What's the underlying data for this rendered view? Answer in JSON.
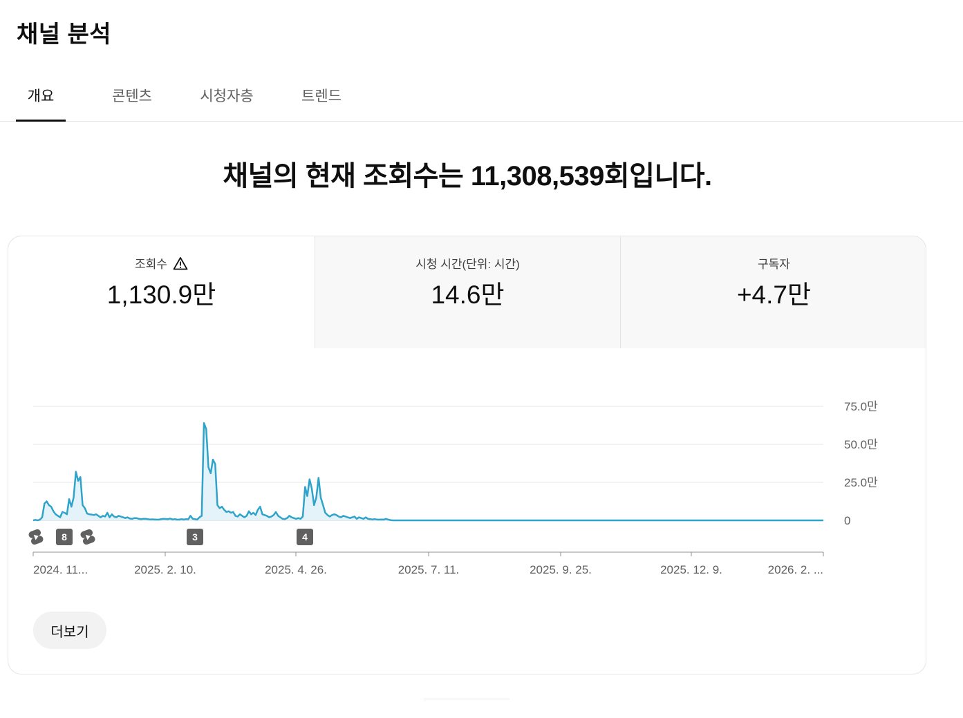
{
  "page": {
    "title": "채널 분석"
  },
  "tabs": [
    {
      "label": "개요",
      "active": true
    },
    {
      "label": "콘텐츠",
      "active": false
    },
    {
      "label": "시청자층",
      "active": false
    },
    {
      "label": "트렌드",
      "active": false
    }
  ],
  "headline": "채널의 현재 조회수는 11,308,539회입니다.",
  "metrics": [
    {
      "label": "조회수",
      "value": "1,130.9만",
      "warning_icon": "warning-icon"
    },
    {
      "label": "시청 시간(단위: 시간)",
      "value": "14.6만"
    },
    {
      "label": "구독자",
      "value": "+4.7만"
    }
  ],
  "more_button": "더보기",
  "colors": {
    "line": "#2fa3c9",
    "fill": "#e3f3f9",
    "grid": "#e5e5e5",
    "marker": "#606060"
  },
  "chart_data": {
    "type": "area",
    "x_tick_labels": [
      "2024. 11...",
      "2025. 2. 10.",
      "2025. 4. 26.",
      "2025. 7. 11.",
      "2025. 9. 25.",
      "2025. 12. 9.",
      "2026. 2. ..."
    ],
    "y_tick_labels": [
      "75.0만",
      "50.0만",
      "25.0만",
      "0"
    ],
    "ylim": [
      0,
      750000
    ],
    "grid": true,
    "series": [
      {
        "values": [
          0,
          3000,
          0,
          5000,
          20000,
          110000,
          125000,
          100000,
          90000,
          60000,
          40000,
          30000,
          20000,
          55000,
          50000,
          40000,
          140000,
          90000,
          150000,
          320000,
          260000,
          285000,
          100000,
          80000,
          45000,
          40000,
          38000,
          35000,
          40000,
          30000,
          20000,
          30000,
          25000,
          50000,
          20000,
          40000,
          25000,
          20000,
          30000,
          25000,
          20000,
          15000,
          20000,
          12000,
          10000,
          15000,
          15000,
          10000,
          8000,
          10000,
          10000,
          8000,
          6000,
          7000,
          6000,
          5000,
          5000,
          8000,
          10000,
          9000,
          8000,
          12000,
          6000,
          8000,
          5000,
          5000,
          8000,
          5000,
          8000,
          7000,
          30000,
          10000,
          8000,
          5000,
          20000,
          30000,
          640000,
          600000,
          350000,
          310000,
          400000,
          370000,
          100000,
          80000,
          90000,
          70000,
          55000,
          60000,
          50000,
          55000,
          30000,
          25000,
          40000,
          30000,
          20000,
          30000,
          60000,
          40000,
          50000,
          35000,
          70000,
          90000,
          40000,
          35000,
          30000,
          20000,
          25000,
          35000,
          55000,
          30000,
          20000,
          10000,
          8000,
          15000,
          30000,
          20000,
          15000,
          10000,
          15000,
          10000,
          25000,
          220000,
          160000,
          270000,
          210000,
          100000,
          150000,
          280000,
          150000,
          100000,
          50000,
          35000,
          25000,
          35000,
          40000,
          35000,
          25000,
          20000,
          30000,
          25000,
          20000,
          15000,
          20000,
          25000,
          10000,
          20000,
          15000,
          10000,
          20000,
          10000,
          8000,
          6000,
          8000,
          6000,
          5000,
          6000,
          5000,
          10000,
          5000,
          2000,
          0
        ]
      }
    ],
    "annotations": [
      {
        "type": "shorts-icon",
        "position": "2024-11"
      },
      {
        "type": "badge",
        "text": "8"
      },
      {
        "type": "shorts-icon",
        "position": "2024-12"
      },
      {
        "type": "badge",
        "text": "3"
      },
      {
        "type": "badge",
        "text": "4"
      }
    ]
  }
}
